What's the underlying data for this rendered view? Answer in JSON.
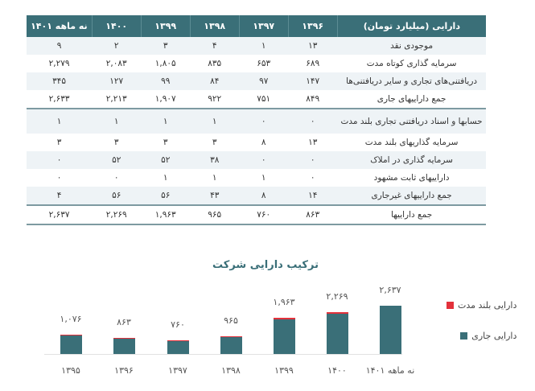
{
  "table": {
    "header": [
      "دارایی (میلیارد تومان)",
      "۱۳۹۶",
      "۱۳۹۷",
      "۱۳۹۸",
      "۱۳۹۹",
      "۱۴۰۰",
      "نه ماهه ۱۴۰۱"
    ],
    "rows": [
      {
        "label": "موجودی نقد",
        "values": [
          "۱۳",
          "۱",
          "۴",
          "۳",
          "۲",
          "۹"
        ]
      },
      {
        "label": "سرمایه گذاری کوتاه مدت",
        "values": [
          "۶۸۹",
          "۶۵۳",
          "۸۳۵",
          "۱,۸۰۵",
          "۲,۰۸۳",
          "۲,۲۷۹"
        ]
      },
      {
        "label": "دریافتنی‌های تجاری و سایر دریافتنی‌ها",
        "values": [
          "۱۴۷",
          "۹۷",
          "۸۴",
          "۹۹",
          "۱۲۷",
          "۳۴۵"
        ]
      },
      {
        "label": "جمع داراییهای جاری",
        "values": [
          "۸۴۹",
          "۷۵۱",
          "۹۲۲",
          "۱,۹۰۷",
          "۲,۲۱۳",
          "۲,۶۳۳"
        ]
      },
      {
        "label": "حسابها و اسناد دریافتنی تجاری بلند مدت",
        "values": [
          "۰",
          "۰",
          "۱",
          "۱",
          "۱",
          "۱"
        ]
      },
      {
        "label": "سرمایه گذاریهای بلند مدت",
        "values": [
          "۱۳",
          "۸",
          "۳",
          "۳",
          "۳",
          "۳"
        ]
      },
      {
        "label": "سرمایه گذاری در املاک",
        "values": [
          "۰",
          "۰",
          "۳۸",
          "۵۲",
          "۵۲",
          "۰"
        ]
      },
      {
        "label": "داراییهای ثابت مشهود",
        "values": [
          "۰",
          "۱",
          "۱",
          "۱",
          "۰",
          "۰"
        ]
      },
      {
        "label": "جمع داراییهای غیرجاری",
        "values": [
          "۱۴",
          "۸",
          "۴۳",
          "۵۶",
          "۵۶",
          "۴"
        ]
      },
      {
        "label": "جمع داراییها",
        "values": [
          "۸۶۳",
          "۷۶۰",
          "۹۶۵",
          "۱,۹۶۳",
          "۲,۲۶۹",
          "۲,۶۳۷"
        ]
      }
    ]
  },
  "chart": {
    "title": "ترکیب دارایی شرکت",
    "legend": [
      "دارایی بلند مدت",
      "دارایی جاری"
    ],
    "labels": [
      "۱۳۹۵",
      "۱۳۹۶",
      "۱۳۹۷",
      "۱۳۹۸",
      "۱۳۹۹",
      "۱۴۰۰",
      "نه ماهه ۱۴۰۱"
    ],
    "totals_text": [
      "۱,۰۷۶",
      "۸۶۳",
      "۷۶۰",
      "۹۶۵",
      "۱,۹۶۳",
      "۲,۲۶۹",
      "۲,۶۳۷"
    ]
  },
  "chart_data": {
    "type": "bar",
    "stacked": true,
    "title": "ترکیب دارایی شرکت",
    "categories": [
      "1395",
      "1396",
      "1397",
      "1398",
      "1399",
      "1400",
      "9M 1401"
    ],
    "series": [
      {
        "name": "دارایی جاری",
        "color": "#3a6f78",
        "values": [
          1060,
          849,
          751,
          922,
          1907,
          2213,
          2633
        ]
      },
      {
        "name": "دارایی بلند مدت",
        "color": "#e3313b",
        "values": [
          16,
          14,
          8,
          43,
          56,
          56,
          4
        ]
      }
    ],
    "totals": [
      1076,
      863,
      760,
      965,
      1963,
      2269,
      2637
    ],
    "xlabel": "",
    "ylabel": "",
    "grid": false,
    "legend_position": "right"
  },
  "colors": {
    "header": "#3a6f78",
    "current": "#3a6f78",
    "longterm": "#e3313b"
  }
}
